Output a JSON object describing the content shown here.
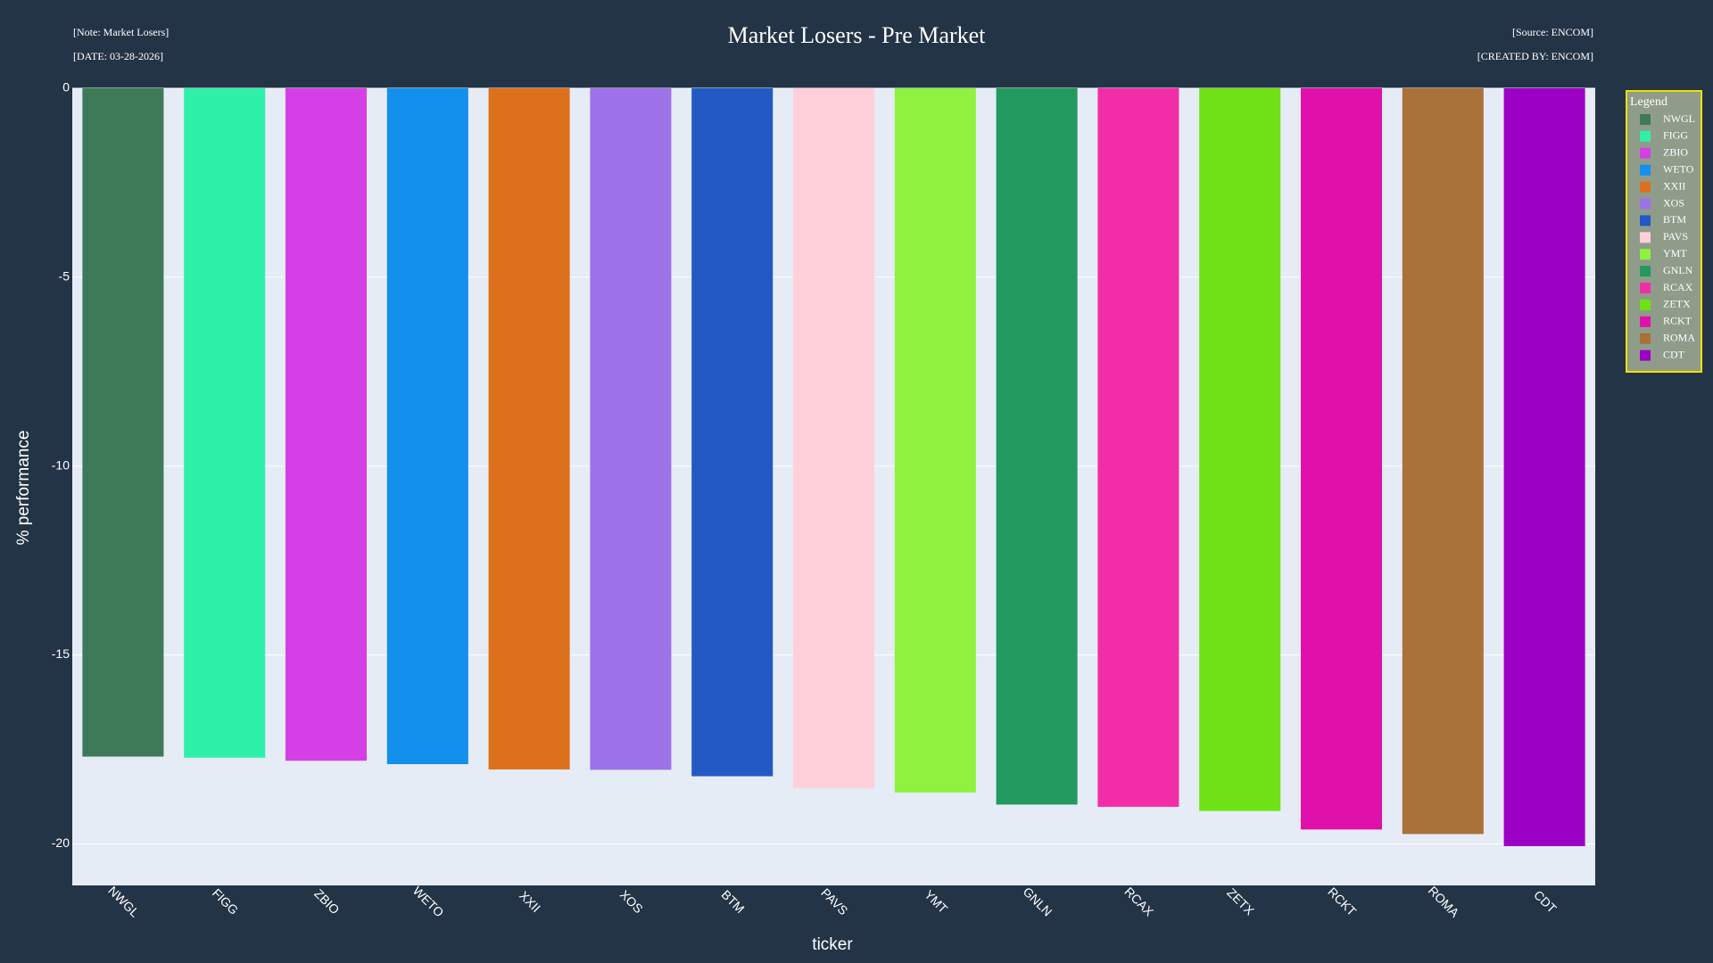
{
  "chart_data": {
    "type": "bar",
    "title": "Market Losers - Pre Market",
    "annotations": {
      "note": "[Note: Market Losers]",
      "date": "[DATE: 03-28-2026]",
      "source": "[Source: ENCOM]",
      "created_by": "[CREATED BY: ENCOM]"
    },
    "x_label": "ticker",
    "y_label": "% performance",
    "legend_title": "Legend",
    "legend_position": "right",
    "categories": [
      "NWGL",
      "FIGG",
      "ZBIO",
      "WETO",
      "XXII",
      "XOS",
      "BTM",
      "PAVS",
      "YMT",
      "GNLN",
      "RCAX",
      "ZETX",
      "RCKT",
      "ROMA",
      "CDT"
    ],
    "values": [
      -17.69,
      -17.72,
      -17.8,
      -17.89,
      -18.03,
      -18.04,
      -18.21,
      -18.53,
      -18.64,
      -18.96,
      -19.02,
      -19.13,
      -19.62,
      -19.74,
      -20.06
    ],
    "colors": [
      "#3f7a58",
      "#2ff0a8",
      "#d43fe6",
      "#1390ec",
      "#dd701c",
      "#9e73ea",
      "#2259c4",
      "#ffd0da",
      "#8ef23e",
      "#22995e",
      "#f22da8",
      "#6fe215",
      "#e010aa",
      "#a87238",
      "#9b00c4"
    ],
    "ylim": [
      -21.1,
      0
    ],
    "yticks": [
      -20,
      -15,
      -10,
      -5,
      0
    ],
    "grid": true
  }
}
